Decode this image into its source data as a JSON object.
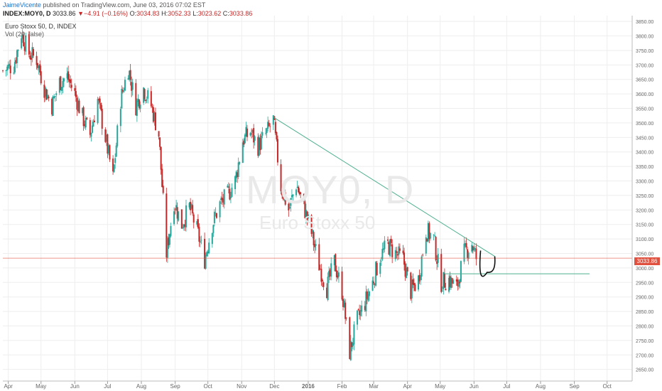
{
  "header": {
    "author": "JaimeVicente",
    "published_text": " published on TradingView.com, June 03, 2016 07:02 EST",
    "symbol": "INDEX:MOY0, D",
    "last": "3033.86",
    "change_arrow": "▼",
    "change": "−4.91 (−0.16%)",
    "o_label": "O:",
    "o_value": "3034.83",
    "h_label": "H:",
    "h_value": "3052.33",
    "l_label": "L:",
    "l_value": "3023.62",
    "c_label": "C:",
    "c_value": "3033.86"
  },
  "legend": {
    "title": "Euro Stoxx 50, D, INDEX",
    "volume": "Vol (20, false)"
  },
  "watermark": {
    "symbol": "MOY0, D",
    "name": "Euro Stoxx 50"
  },
  "price_label": "3033.86",
  "colors": {
    "up": "#26a69a",
    "down": "#c62828",
    "trendline": "#4caf8f",
    "support": "#4caf8f",
    "price_line": "#e0523f",
    "grid": "#eeeeee"
  },
  "chart_data": {
    "type": "candlestick",
    "title": "Euro Stoxx 50, D, INDEX",
    "ylim": [
      2610,
      3870
    ],
    "y_ticks": [
      2650,
      2700,
      2750,
      2800,
      2850,
      2900,
      2950,
      3000,
      3050,
      3100,
      3150,
      3200,
      3250,
      3300,
      3350,
      3400,
      3450,
      3500,
      3550,
      3600,
      3650,
      3700,
      3750,
      3800,
      3850
    ],
    "x_labels": [
      "Apr",
      "May",
      "Jun",
      "Jul",
      "Aug",
      "Sep",
      "Oct",
      "Nov",
      "Dec",
      "2016",
      "Feb",
      "Mar",
      "Apr",
      "May",
      "Jun",
      "Jul",
      "Aug",
      "Sep",
      "Oct"
    ],
    "x_label_dates": [
      "2015-04-01",
      "2015-05-01",
      "2015-06-01",
      "2015-07-01",
      "2015-08-01",
      "2015-09-01",
      "2015-10-01",
      "2015-11-01",
      "2015-12-01",
      "2016-01-01",
      "2016-02-01",
      "2016-03-01",
      "2016-04-01",
      "2016-05-01",
      "2016-06-01",
      "2016-07-01",
      "2016-08-01",
      "2016-09-01",
      "2016-10-01"
    ],
    "x_range": [
      "2015-03-27",
      "2016-10-24"
    ],
    "close_series": [
      [
        "2015-03-27",
        3680
      ],
      [
        "2015-04-06",
        3700
      ],
      [
        "2015-04-13",
        3810
      ],
      [
        "2015-04-20",
        3740
      ],
      [
        "2015-04-27",
        3720
      ],
      [
        "2015-05-04",
        3620
      ],
      [
        "2015-05-11",
        3560
      ],
      [
        "2015-05-18",
        3640
      ],
      [
        "2015-05-25",
        3660
      ],
      [
        "2015-06-01",
        3600
      ],
      [
        "2015-06-08",
        3520
      ],
      [
        "2015-06-15",
        3460
      ],
      [
        "2015-06-22",
        3580
      ],
      [
        "2015-06-29",
        3450
      ],
      [
        "2015-07-06",
        3310
      ],
      [
        "2015-07-13",
        3580
      ],
      [
        "2015-07-20",
        3690
      ],
      [
        "2015-07-27",
        3560
      ],
      [
        "2015-08-03",
        3620
      ],
      [
        "2015-08-10",
        3560
      ],
      [
        "2015-08-17",
        3460
      ],
      [
        "2015-08-24",
        3050
      ],
      [
        "2015-08-31",
        3230
      ],
      [
        "2015-09-07",
        3150
      ],
      [
        "2015-09-14",
        3210
      ],
      [
        "2015-09-21",
        3130
      ],
      [
        "2015-09-28",
        3030
      ],
      [
        "2015-10-05",
        3150
      ],
      [
        "2015-10-12",
        3220
      ],
      [
        "2015-10-19",
        3250
      ],
      [
        "2015-10-26",
        3300
      ],
      [
        "2015-11-02",
        3440
      ],
      [
        "2015-11-09",
        3470
      ],
      [
        "2015-11-16",
        3420
      ],
      [
        "2015-11-23",
        3460
      ],
      [
        "2015-11-30",
        3510
      ],
      [
        "2015-12-07",
        3280
      ],
      [
        "2015-12-14",
        3200
      ],
      [
        "2015-12-21",
        3290
      ],
      [
        "2015-12-28",
        3210
      ],
      [
        "2016-01-04",
        3120
      ],
      [
        "2016-01-11",
        3010
      ],
      [
        "2016-01-18",
        2930
      ],
      [
        "2016-01-25",
        3020
      ],
      [
        "2016-02-01",
        2920
      ],
      [
        "2016-02-08",
        2710
      ],
      [
        "2016-02-15",
        2820
      ],
      [
        "2016-02-22",
        2880
      ],
      [
        "2016-02-29",
        2950
      ],
      [
        "2016-03-07",
        3040
      ],
      [
        "2016-03-14",
        3080
      ],
      [
        "2016-03-21",
        3050
      ],
      [
        "2016-03-28",
        3030
      ],
      [
        "2016-04-04",
        2920
      ],
      [
        "2016-04-11",
        2960
      ],
      [
        "2016-04-18",
        3130
      ],
      [
        "2016-04-25",
        3100
      ],
      [
        "2016-05-02",
        2950
      ],
      [
        "2016-05-09",
        2960
      ],
      [
        "2016-05-16",
        2930
      ],
      [
        "2016-05-23",
        3050
      ],
      [
        "2016-05-30",
        3085
      ],
      [
        "2016-06-03",
        3034
      ]
    ],
    "annotations": {
      "trendline": {
        "from": [
          "2015-11-30",
          3520
        ],
        "to": [
          "2016-06-20",
          3040
        ]
      },
      "support": {
        "from": [
          "2016-05-05",
          2980
        ],
        "to": [
          "2016-09-15",
          2980
        ]
      },
      "horizontal_price": 3033.86,
      "arc": {
        "from": [
          "2016-06-07",
          3060
        ],
        "bottom": [
          "2016-06-13",
          2985
        ],
        "to": [
          "2016-06-20",
          3040
        ]
      }
    }
  }
}
